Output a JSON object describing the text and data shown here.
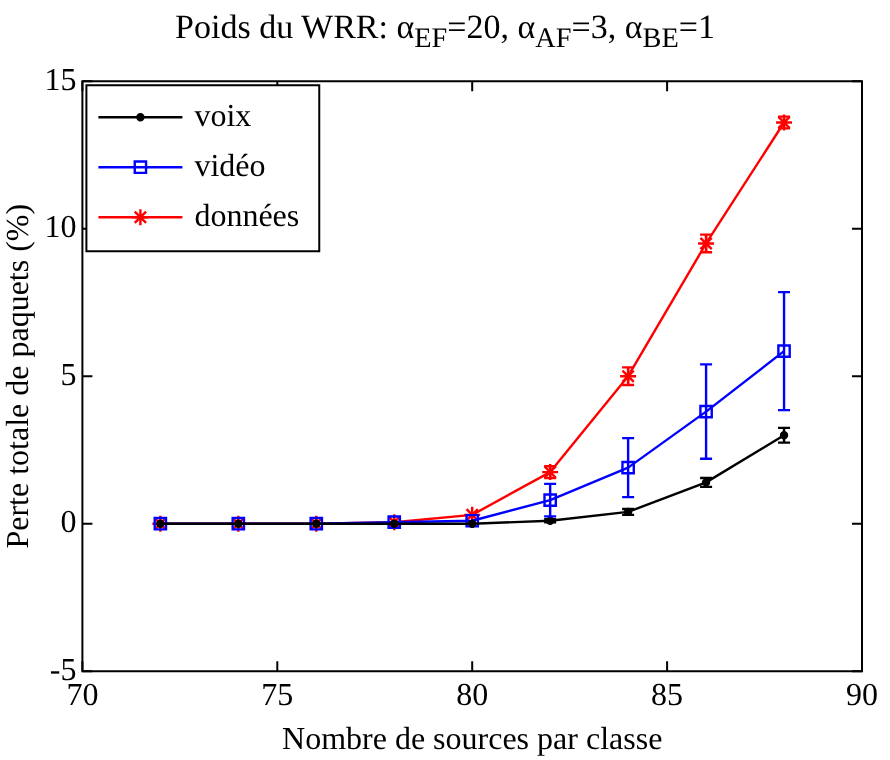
{
  "chart_data": {
    "type": "line",
    "title": "Poids du WRR: α$_{EF}$=20, α$_{AF}$=3, α$_{BE}$=1",
    "xlabel": "Nombre de sources par classe",
    "ylabel": "Perte totale de paquets (%)",
    "x": [
      72,
      74,
      76,
      78,
      80,
      82,
      84,
      86,
      88
    ],
    "series": [
      {
        "name": "voix",
        "color": "#000000",
        "marker": "circle",
        "values": [
          0,
          0,
          0,
          0,
          0,
          0.1,
          0.4,
          1.4,
          3.0
        ],
        "errors": [
          null,
          null,
          null,
          null,
          null,
          0.05,
          0.1,
          0.15,
          0.25
        ]
      },
      {
        "name": "vidéo",
        "color": "#0000ff",
        "marker": "square",
        "values": [
          0,
          0,
          0,
          0.05,
          0.1,
          0.8,
          1.9,
          3.8,
          5.85
        ],
        "errors": [
          null,
          null,
          null,
          null,
          null,
          0.55,
          1.0,
          1.6,
          2.0
        ]
      },
      {
        "name": "données",
        "color": "#ff0000",
        "marker": "cross",
        "values": [
          0,
          0,
          0,
          0.05,
          0.3,
          1.75,
          5.0,
          9.5,
          13.6
        ],
        "errors": [
          null,
          null,
          null,
          null,
          null,
          0.2,
          0.3,
          0.3,
          0.2
        ]
      }
    ],
    "xlim": [
      70,
      90
    ],
    "xticks": [
      70,
      75,
      80,
      85,
      90
    ],
    "ylim": [
      -5,
      15
    ],
    "yticks": [
      -5,
      0,
      5,
      10,
      15
    ],
    "grid": false,
    "legend": "top left",
    "line_style": "solid"
  }
}
